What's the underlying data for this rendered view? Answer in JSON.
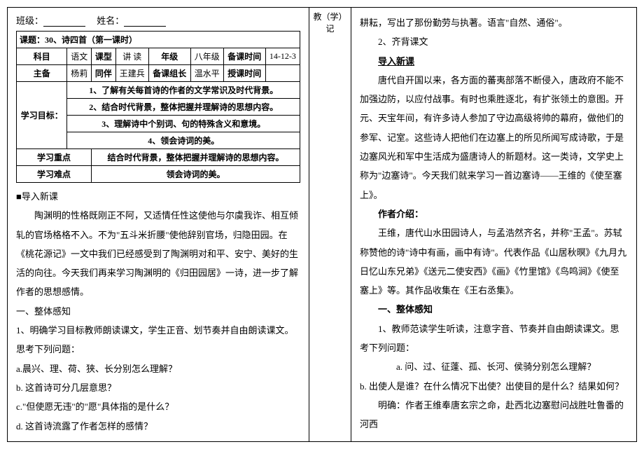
{
  "header": {
    "class_label": "班级：",
    "name_label": "姓名："
  },
  "midcol": "教（学）记",
  "lesson": {
    "topic_label": "课题：",
    "topic": "30、诗四首（第一课时）",
    "subject_label": "科目",
    "subject": "语文",
    "type_label": "课型",
    "type": "讲  读",
    "grade_label": "年级",
    "grade": "八年级",
    "prep_time_label": "备课时间",
    "prep_time": "14-12-3",
    "preparer_label": "主备",
    "preparer": "杨莉",
    "coop_label": "同伴",
    "coop": "王建兵",
    "leader_label": "备课组长",
    "leader": "温水平",
    "teach_time_label": "授课时间",
    "teach_time": "",
    "goals_label": "学习目标：",
    "goal1": "1、了解有关每首诗的作者的文学常识及时代背景。",
    "goal2": "2、结合时代背景，整体把握并理解诗的思想内容。",
    "goal3": "3、理解诗中个别词、句的特殊含义和意境。",
    "goal4": "4、领会诗词的美。",
    "focus_label": "学习重点",
    "focus": "结合时代背景，整体把握并理解诗的思想内容。",
    "diff_label": "学习难点",
    "diff": "领会诗词的美。"
  },
  "left": {
    "l1": "■导入新课",
    "l2": "陶渊明的性格既刚正不阿，又适情任性这使他与尔虞我诈、相互倾轧的官场格格不入。不为\"五斗米折腰\"使他辞别官场，归隐田园。在《桃花源记》一文中我们已经感受到了陶渊明对和平、安宁、美好的生活的向往。今天我们再来学习陶渊明的《归田园居》一诗，进一步了解作者的思想感情。",
    "l3": "一、整体感知",
    "l4": "1、明确学习目标教师朗读课文，学生正音、划节奏并自由朗读课文。思考下列问题：",
    "l5": "a.晨兴、理、荷、狭、长分别怎么理解？",
    "l6": "b.  这首诗可分几层意思？",
    "l7": "c.\"但使愿无违\"的\"愿\"具体指的是什么？",
    "l8": "d.  这首诗流露了作者怎样的感情？"
  },
  "right": {
    "r1": "耕耘，写出了那份勤劳与执著。语言\"自然、通俗\"。",
    "r2": "2、齐背课文",
    "r3": "导入新课",
    "r4": "唐代自开国以来，各方面的蕃夷部落不断侵入，唐政府不能不加强边防，以应付战事。有时也乘胜逐北，有扩张领土的意图。开元、天宝年间，有许多诗人参加了守边高级将帅的幕府，做他们的参军、记室。这些诗人把他们在边塞上的所见所闻写成诗歌，于是边塞风光和军中生活成为盛唐诗人的新题材。这一类诗，文学史上称为\"边塞诗\"。今天我们就来学习一首边塞诗——王维的《使至塞上》。",
    "r5": "作者介绍：",
    "r6": "王维，唐代山水田园诗人，与孟浩然齐名，并称\"王孟\"。苏轼称赞他的诗\"诗中有画，画中有诗\"。代表作品《山居秋暝》《九月九日忆山东兄弟》《送元二使安西》《画》《竹里馆》《鸟鸣涧》《使至塞上》等。其作品收集在《王右丞集》。",
    "r7": "一、整体感知",
    "r8": "1、教师范读学生听读，注意字音、节奏并自由朗读课文。思考下列问题：",
    "r9": "a. 问、过、征蓬、孤、长河、侯骑分别怎么理解？",
    "r10": "b.  出使人是谁？在什么情况下出使？出使目的是什么？结果如何？",
    "r11": "明确：作者王维奉唐玄宗之命，赴西北边塞慰问战胜吐鲁番的河西"
  }
}
